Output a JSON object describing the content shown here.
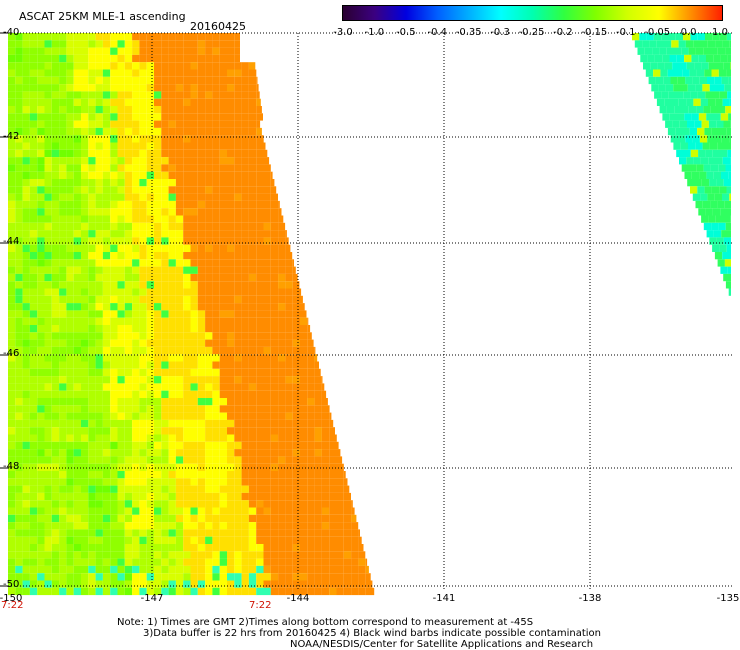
{
  "header": {
    "title": "ASCAT 25KM MLE-1 ascending",
    "date": "20160425"
  },
  "colorbar": {
    "labels": [
      "-3.0",
      "-1.0",
      "-0.5",
      "-0.4",
      "-0.35",
      "-0.3",
      "-0.25",
      "-0.2",
      "-0.15",
      "-0.1",
      "-0.05",
      "0.0",
      "1.0"
    ],
    "colors": [
      "#2a0030",
      "#3b0080",
      "#0000e0",
      "#0060ff",
      "#00b0ff",
      "#00ffff",
      "#00ffb0",
      "#30ff40",
      "#80ff00",
      "#d0ff00",
      "#ffff00",
      "#ff9000",
      "#ff2000"
    ]
  },
  "axes": {
    "lat_labels": [
      "-40",
      "-42",
      "-44",
      "-46",
      "-48",
      "-50"
    ],
    "lon_labels": [
      "-150",
      "-147",
      "-144",
      "-141",
      "-138",
      "-135"
    ],
    "time_labels": [
      "7:22",
      "7:22"
    ]
  },
  "notes": {
    "line1": "Note: 1) Times are GMT 2)Times along bottom correspond to measurement at -45S",
    "line2": "3)Data buffer is 22 hrs from 20160425 4) Black wind barbs indicate possible contamination",
    "line3": "NOAA/NESDIS/Center for Satellite Applications and Research"
  }
}
